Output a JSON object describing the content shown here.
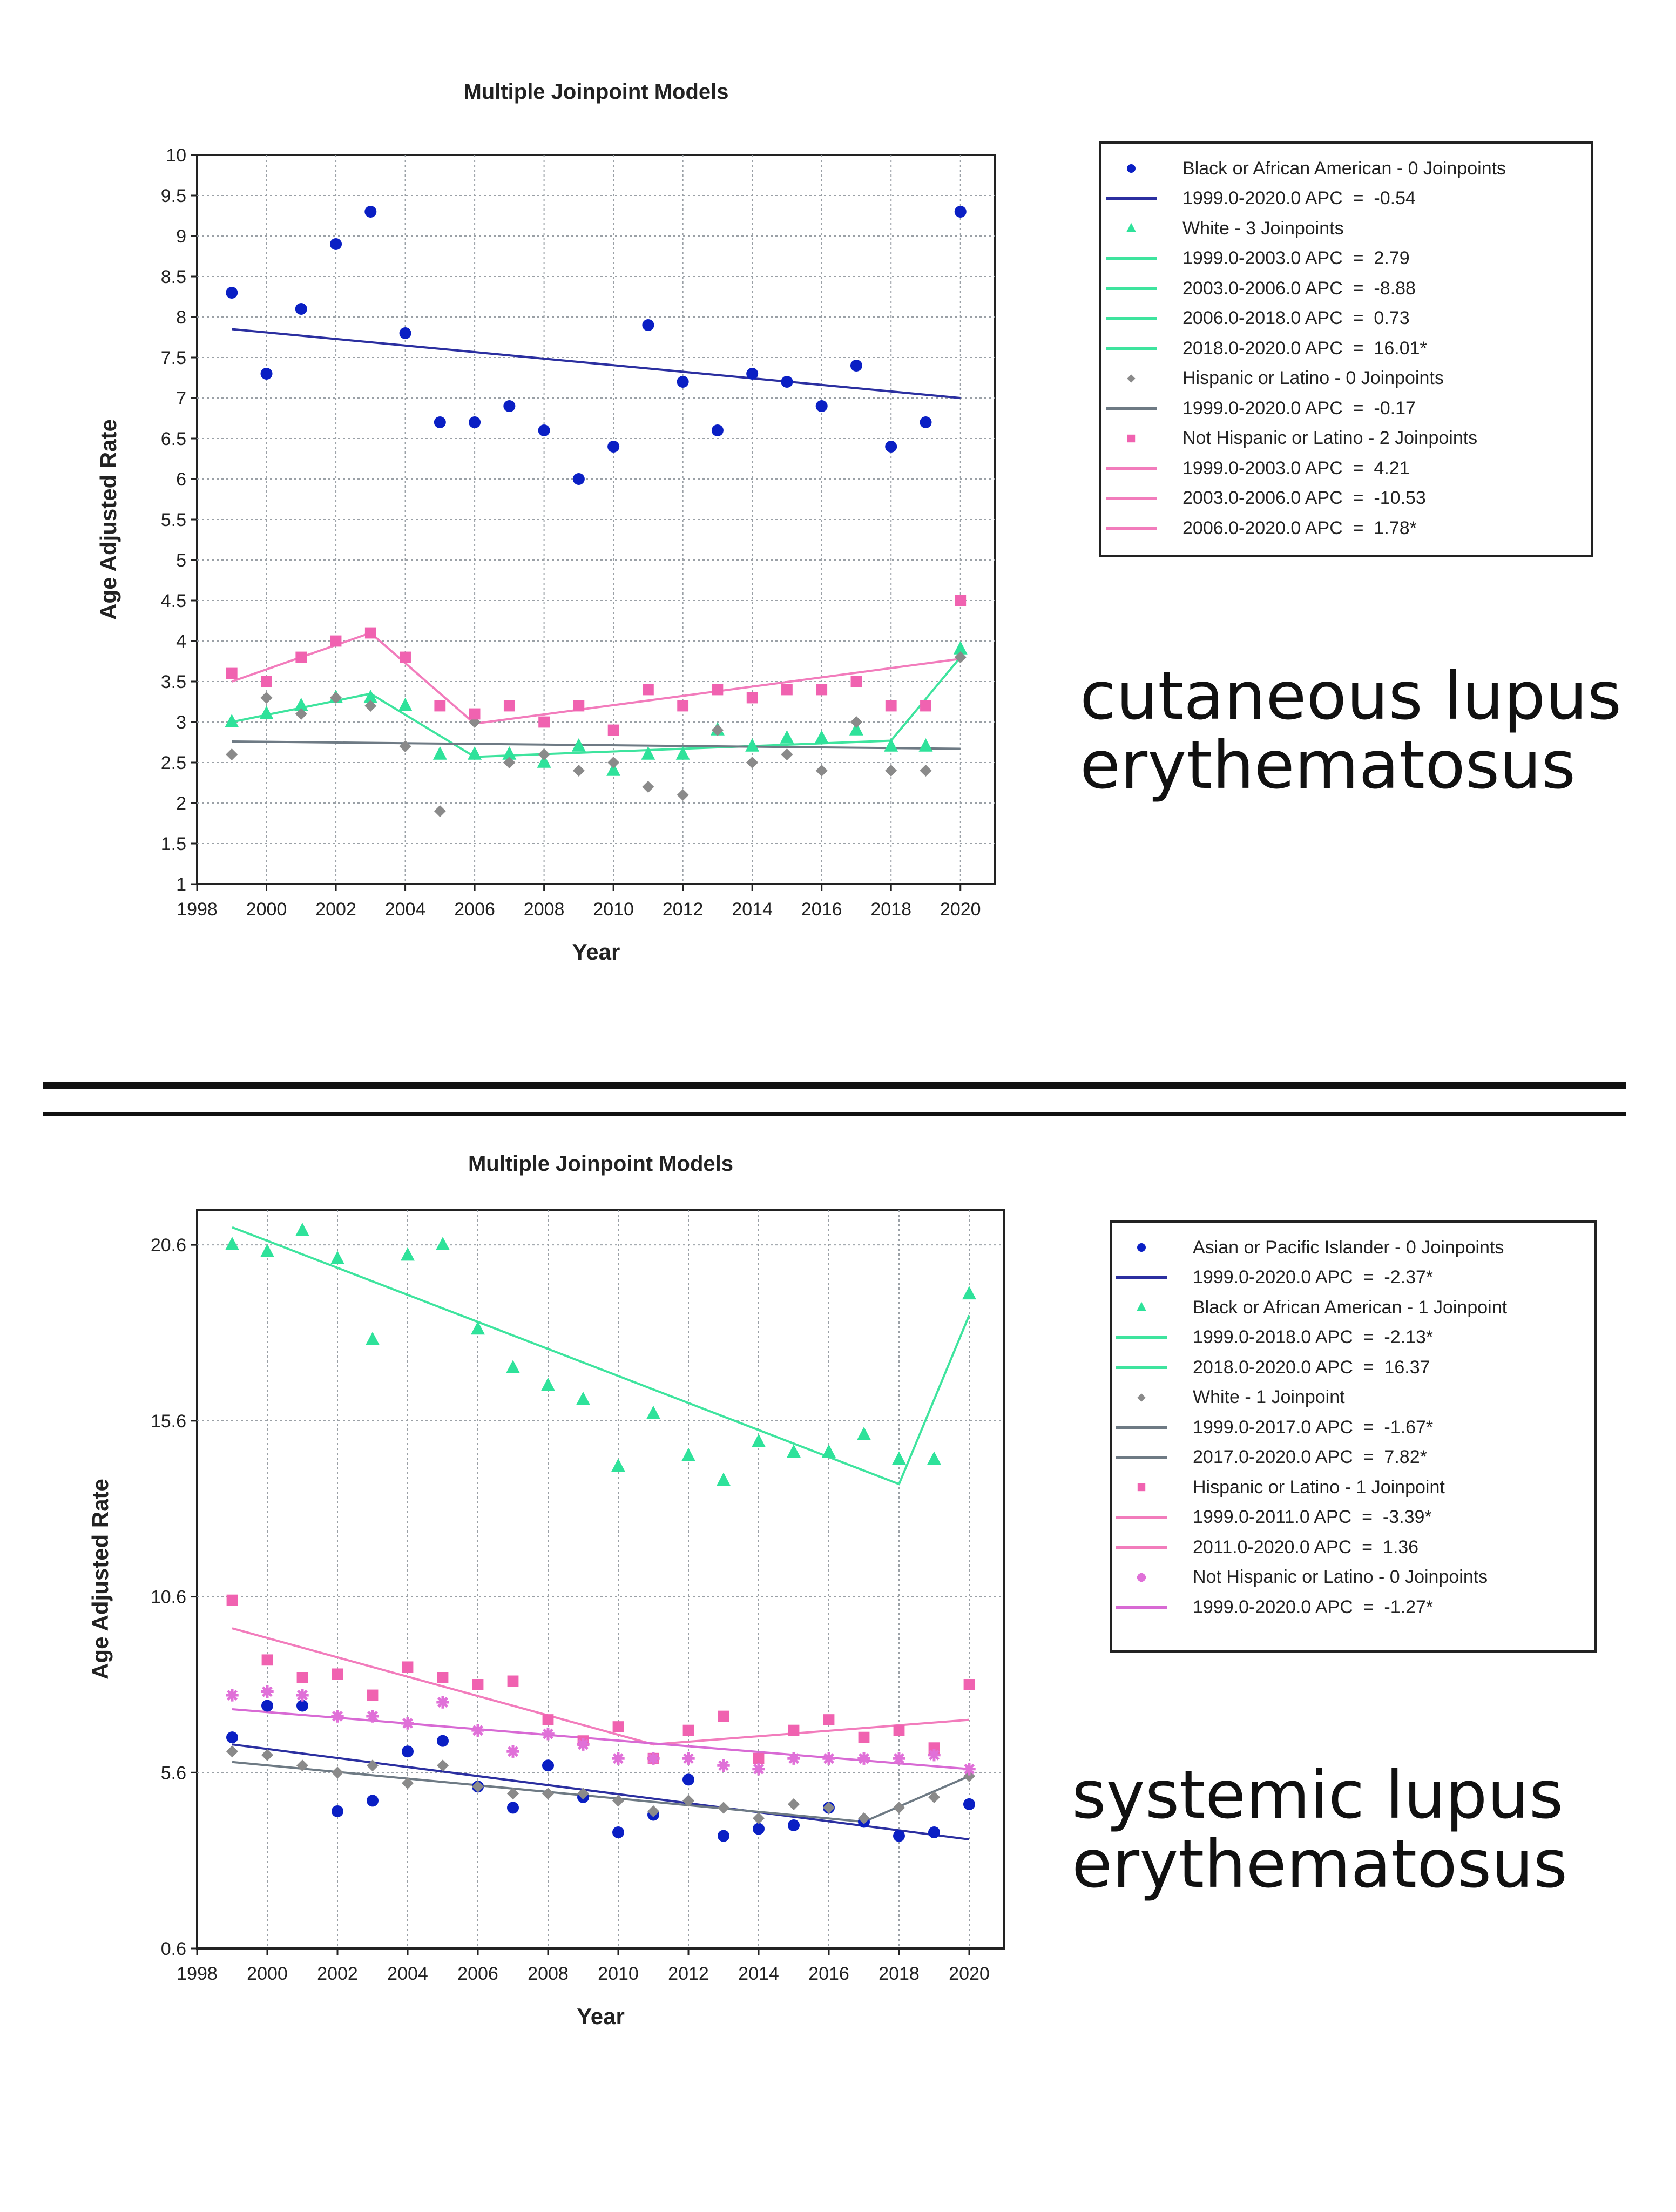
{
  "chart_data": [
    {
      "type": "scatter",
      "title": "Multiple Joinpoint Models",
      "xlabel": "Year",
      "ylabel": "Age Adjusted Rate",
      "caption": "cutaneous lupus\nerythematosus",
      "xlim": [
        1998,
        2021
      ],
      "ylim": [
        1,
        10
      ],
      "xticks": [
        1998,
        2000,
        2002,
        2004,
        2006,
        2008,
        2010,
        2012,
        2014,
        2016,
        2018,
        2020
      ],
      "yticks": [
        1,
        1.5,
        2,
        2.5,
        3,
        3.5,
        4,
        4.5,
        5,
        5.5,
        6,
        6.5,
        7,
        7.5,
        8,
        8.5,
        9,
        9.5,
        10
      ],
      "grid": true,
      "legend_position": "right",
      "series": [
        {
          "name": "Black or African American - 0 Joinpoints",
          "color": "#0a1fc4",
          "line_color": "#2b2fa0",
          "marker": "circle",
          "x": [
            1999,
            2000,
            2001,
            2002,
            2003,
            2004,
            2005,
            2006,
            2007,
            2008,
            2009,
            2010,
            2011,
            2012,
            2013,
            2014,
            2015,
            2016,
            2017,
            2018,
            2019,
            2020
          ],
          "y": [
            8.3,
            7.3,
            8.1,
            8.9,
            9.3,
            7.8,
            6.7,
            6.7,
            6.9,
            6.6,
            6.0,
            6.4,
            7.9,
            7.2,
            6.6,
            7.3,
            7.2,
            6.9,
            7.4,
            6.4,
            6.7,
            9.3
          ],
          "fit": [
            [
              1999,
              7.85
            ],
            [
              2020,
              7.0
            ]
          ],
          "segments": [
            "1999.0-2020.0 APC  =  -0.54"
          ]
        },
        {
          "name": "White - 3 Joinpoints",
          "color": "#2ee29a",
          "line_color": "#3ee49e",
          "marker": "triangle",
          "x": [
            1999,
            2000,
            2001,
            2002,
            2003,
            2004,
            2005,
            2006,
            2007,
            2008,
            2009,
            2010,
            2011,
            2012,
            2013,
            2014,
            2015,
            2016,
            2017,
            2018,
            2019,
            2020
          ],
          "y": [
            3.0,
            3.1,
            3.2,
            3.3,
            3.3,
            3.2,
            2.6,
            2.6,
            2.6,
            2.5,
            2.7,
            2.4,
            2.6,
            2.6,
            2.9,
            2.7,
            2.8,
            2.8,
            2.9,
            2.7,
            2.7,
            3.9
          ],
          "fit": [
            [
              1999,
              3.0
            ],
            [
              2003,
              3.35
            ],
            [
              2006,
              2.57
            ],
            [
              2018,
              2.77
            ],
            [
              2020,
              3.8
            ]
          ],
          "segments": [
            "1999.0-2003.0 APC  =  2.79",
            "2003.0-2006.0 APC  =  -8.88",
            "2006.0-2018.0 APC  =  0.73",
            "2018.0-2020.0 APC  =  16.01*"
          ]
        },
        {
          "name": "Hispanic or Latino - 0 Joinpoints",
          "color": "#8a8a8a",
          "line_color": "#6e7a84",
          "marker": "diamond",
          "x": [
            1999,
            2000,
            2001,
            2002,
            2003,
            2004,
            2005,
            2006,
            2007,
            2008,
            2009,
            2010,
            2011,
            2012,
            2013,
            2014,
            2015,
            2016,
            2017,
            2018,
            2019,
            2020
          ],
          "y": [
            2.6,
            3.3,
            3.1,
            3.3,
            3.2,
            2.7,
            1.9,
            3.0,
            2.5,
            2.6,
            2.4,
            2.5,
            2.2,
            2.1,
            2.9,
            2.5,
            2.6,
            2.4,
            3.0,
            2.4,
            2.4,
            3.8
          ],
          "fit": [
            [
              1999,
              2.76
            ],
            [
              2020,
              2.67
            ]
          ],
          "segments": [
            "1999.0-2020.0 APC  =  -0.17"
          ]
        },
        {
          "name": "Not Hispanic or Latino - 2 Joinpoints",
          "color": "#f062b0",
          "line_color": "#f27cbc",
          "marker": "square",
          "x": [
            1999,
            2000,
            2001,
            2002,
            2003,
            2004,
            2005,
            2006,
            2007,
            2008,
            2009,
            2010,
            2011,
            2012,
            2013,
            2014,
            2015,
            2016,
            2017,
            2018,
            2019,
            2020
          ],
          "y": [
            3.6,
            3.5,
            3.8,
            4.0,
            4.1,
            3.8,
            3.2,
            3.1,
            3.2,
            3.0,
            3.2,
            2.9,
            3.4,
            3.2,
            3.4,
            3.3,
            3.4,
            3.4,
            3.5,
            3.2,
            3.2,
            4.5
          ],
          "fit": [
            [
              1999,
              3.5
            ],
            [
              2003,
              4.1
            ],
            [
              2006,
              2.98
            ],
            [
              2020,
              3.78
            ]
          ],
          "segments": [
            "1999.0-2003.0 APC  =  4.21",
            "2003.0-2006.0 APC  =  -10.53",
            "2006.0-2020.0 APC  =  1.78*"
          ]
        }
      ]
    },
    {
      "type": "scatter",
      "title": "Multiple Joinpoint Models",
      "xlabel": "Year",
      "ylabel": "Age Adjusted Rate",
      "caption": "systemic lupus\nerythematosus",
      "xlim": [
        1998,
        2021
      ],
      "ylim": [
        0.6,
        21.6
      ],
      "xticks": [
        1998,
        2000,
        2002,
        2004,
        2006,
        2008,
        2010,
        2012,
        2014,
        2016,
        2018,
        2020
      ],
      "yticks": [
        0.6,
        5.6,
        10.6,
        15.6,
        20.6
      ],
      "grid": true,
      "legend_position": "right",
      "series": [
        {
          "name": "Asian or Pacific Islander - 0 Joinpoints",
          "color": "#0a1fc4",
          "line_color": "#2b2fa0",
          "marker": "circle",
          "x": [
            1999,
            2000,
            2001,
            2002,
            2003,
            2004,
            2005,
            2006,
            2007,
            2008,
            2009,
            2010,
            2011,
            2012,
            2013,
            2014,
            2015,
            2016,
            2017,
            2018,
            2019,
            2020
          ],
          "y": [
            6.6,
            7.5,
            7.5,
            4.5,
            4.8,
            6.2,
            6.5,
            5.2,
            4.6,
            5.8,
            4.9,
            3.9,
            4.4,
            5.4,
            3.8,
            4.0,
            4.1,
            4.6,
            4.2,
            3.8,
            3.9,
            4.7
          ],
          "fit": [
            [
              1999,
              6.4
            ],
            [
              2020,
              3.7
            ]
          ],
          "segments": [
            "1999.0-2020.0 APC  =  -2.37*"
          ]
        },
        {
          "name": "Black or African American - 1 Joinpoint",
          "color": "#2ee29a",
          "line_color": "#3ee49e",
          "marker": "triangle",
          "x": [
            1999,
            2000,
            2001,
            2002,
            2003,
            2004,
            2005,
            2006,
            2007,
            2008,
            2009,
            2010,
            2011,
            2012,
            2013,
            2014,
            2015,
            2016,
            2017,
            2018,
            2019,
            2020
          ],
          "y": [
            20.6,
            20.4,
            21.0,
            20.2,
            17.9,
            20.3,
            20.6,
            18.2,
            17.1,
            16.6,
            16.2,
            14.3,
            15.8,
            14.6,
            13.9,
            15.0,
            14.7,
            14.7,
            15.2,
            14.5,
            14.5,
            19.2
          ],
          "fit": [
            [
              1999,
              21.1
            ],
            [
              2018,
              13.8
            ],
            [
              2020,
              18.6
            ]
          ],
          "segments": [
            "1999.0-2018.0 APC  =  -2.13*",
            "2018.0-2020.0 APC  =  16.37"
          ]
        },
        {
          "name": "White - 1 Joinpoint",
          "color": "#8a8a8a",
          "line_color": "#6e7a84",
          "marker": "diamond",
          "x": [
            1999,
            2000,
            2001,
            2002,
            2003,
            2004,
            2005,
            2006,
            2007,
            2008,
            2009,
            2010,
            2011,
            2012,
            2013,
            2014,
            2015,
            2016,
            2017,
            2018,
            2019,
            2020
          ],
          "y": [
            6.2,
            6.1,
            5.8,
            5.6,
            5.8,
            5.3,
            5.8,
            5.2,
            5.0,
            5.0,
            5.0,
            4.8,
            4.5,
            4.8,
            4.6,
            4.3,
            4.7,
            4.6,
            4.3,
            4.6,
            4.9,
            5.5
          ],
          "fit": [
            [
              1999,
              5.9
            ],
            [
              2017,
              4.2
            ],
            [
              2020,
              5.5
            ]
          ],
          "segments": [
            "1999.0-2017.0 APC  =  -1.67*",
            "2017.0-2020.0 APC  =  7.82*"
          ]
        },
        {
          "name": "Hispanic or Latino - 1 Joinpoint",
          "color": "#f062b0",
          "line_color": "#f27cbc",
          "marker": "square",
          "x": [
            1999,
            2000,
            2001,
            2002,
            2003,
            2004,
            2005,
            2006,
            2007,
            2008,
            2009,
            2010,
            2011,
            2012,
            2013,
            2014,
            2015,
            2016,
            2017,
            2018,
            2019,
            2020
          ],
          "y": [
            10.5,
            8.8,
            8.3,
            8.4,
            7.8,
            8.6,
            8.3,
            8.1,
            8.2,
            7.1,
            6.5,
            6.9,
            6.0,
            6.8,
            7.2,
            6.0,
            6.8,
            7.1,
            6.6,
            6.8,
            6.3,
            8.1
          ],
          "fit": [
            [
              1999,
              9.7
            ],
            [
              2011,
              6.4
            ],
            [
              2020,
              7.1
            ]
          ],
          "segments": [
            "1999.0-2011.0 APC  =  -3.39*",
            "2011.0-2020.0 APC  =  1.36"
          ]
        },
        {
          "name": "Not Hispanic or Latino - 0 Joinpoints",
          "color": "#e070d8",
          "line_color": "#d86ad4",
          "marker": "star",
          "x": [
            1999,
            2000,
            2001,
            2002,
            2003,
            2004,
            2005,
            2006,
            2007,
            2008,
            2009,
            2010,
            2011,
            2012,
            2013,
            2014,
            2015,
            2016,
            2017,
            2018,
            2019,
            2020
          ],
          "y": [
            7.8,
            7.9,
            7.8,
            7.2,
            7.2,
            7.0,
            7.6,
            6.8,
            6.2,
            6.7,
            6.4,
            6.0,
            6.0,
            6.0,
            5.8,
            5.7,
            6.0,
            6.0,
            6.0,
            6.0,
            6.1,
            5.7
          ],
          "fit": [
            [
              1999,
              7.4
            ],
            [
              2020,
              5.7
            ]
          ],
          "segments": [
            "1999.0-2020.0 APC  =  -1.27*"
          ]
        }
      ]
    }
  ]
}
